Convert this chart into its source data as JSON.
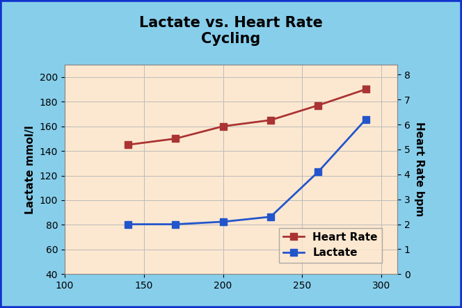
{
  "title_line1": "Lactate vs. Heart Rate",
  "title_line2": "Cycling",
  "title_fontsize": 15,
  "title_fontweight": "bold",
  "x": [
    140,
    170,
    200,
    230,
    260,
    290
  ],
  "heart_rate": [
    145,
    150,
    160,
    165,
    177,
    190
  ],
  "heart_rate_color": "#aa3333",
  "heart_rate_label": "Heart Rate",
  "lactate": [
    2.0,
    2.0,
    2.1,
    2.3,
    4.1,
    6.2
  ],
  "lactate_color": "#2255cc",
  "lactate_label": "Lactate",
  "xlim": [
    100,
    310
  ],
  "xticks": [
    100,
    150,
    200,
    250,
    300
  ],
  "ylim_left": [
    40,
    210
  ],
  "yticks_left": [
    40,
    60,
    80,
    100,
    120,
    140,
    160,
    180,
    200
  ],
  "ylabel_left": "Lactate mmol/l",
  "ylim_right": [
    0,
    8.4
  ],
  "yticks_right": [
    0,
    1,
    2,
    3,
    4,
    5,
    6,
    7,
    8
  ],
  "ylabel_right": "Heart Rate bpm",
  "plot_bg_color": "#fce8d0",
  "outer_bg_color": "#87ceeb",
  "border_color": "#1133cc",
  "border_linewidth": 4,
  "grid_color": "#bbbbbb",
  "grid_linewidth": 0.7,
  "line_linewidth": 2.0,
  "marker": "s",
  "markersize": 7,
  "legend_fontsize": 11,
  "ylabel_fontsize": 11
}
